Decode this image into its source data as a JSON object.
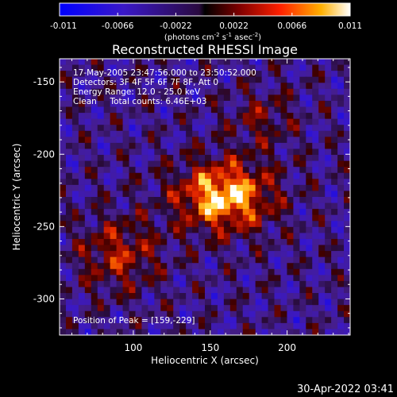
{
  "colorbar": {
    "ticks": [
      "-0.011",
      "-0.0066",
      "-0.0022",
      "0.0022",
      "0.0066",
      "0.011"
    ],
    "range": [
      -0.011,
      0.011
    ],
    "unit_parts": [
      "(photons cm",
      "-2",
      " s",
      "-1",
      " asec",
      "-2",
      ")"
    ]
  },
  "chart_data": {
    "type": "heatmap",
    "title": "Reconstructed RHESSI Image",
    "xlabel": "Heliocentric X (arcsec)",
    "ylabel": "Heliocentric Y (arcsec)",
    "xlim": [
      52,
      241
    ],
    "ylim": [
      -325,
      -134
    ],
    "x_ticks": [
      100,
      150,
      200
    ],
    "y_ticks": [
      -150,
      -200,
      -250,
      -300
    ],
    "peak": {
      "x": 159,
      "y": -229
    },
    "annotations": [
      "17-May-2005 23:47:56.000 to 23:50:52.000",
      "Detectors: 3F 4F 5F 6F 7F 8F, Att 0",
      "Energy Range: 12.0 - 25.0 keV",
      "Clean     Total counts: 6.46E+03"
    ],
    "peak_label": "Position of Peak = [159,-229]"
  },
  "timestamp": "30-Apr-2022 03:41"
}
